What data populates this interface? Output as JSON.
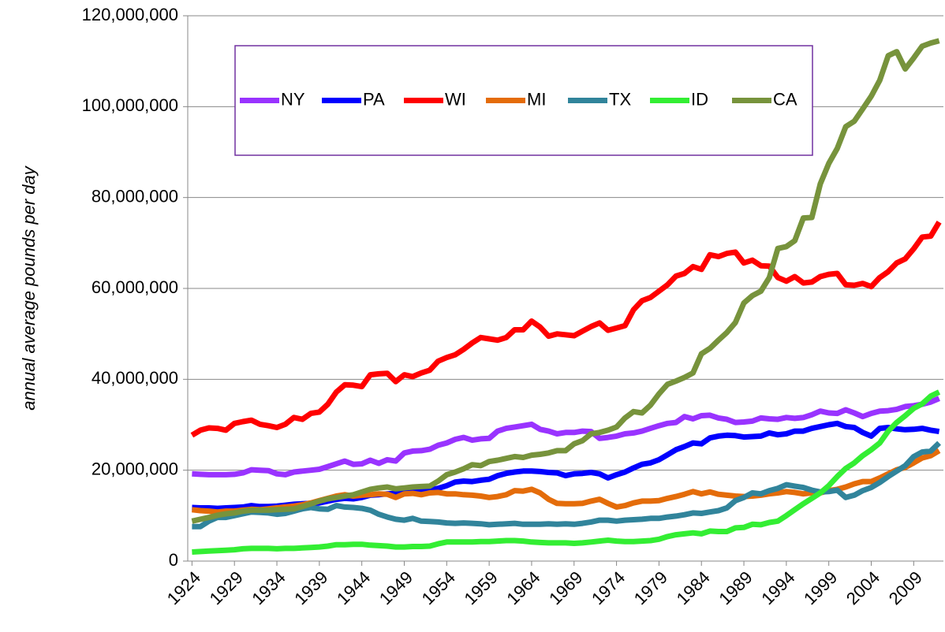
{
  "chart_data": {
    "type": "line",
    "y_label": "annual average pounds per day",
    "x": [
      1924,
      1925,
      1926,
      1927,
      1928,
      1929,
      1930,
      1931,
      1932,
      1933,
      1934,
      1935,
      1936,
      1937,
      1938,
      1939,
      1940,
      1941,
      1942,
      1943,
      1944,
      1945,
      1946,
      1947,
      1948,
      1949,
      1950,
      1951,
      1952,
      1953,
      1954,
      1955,
      1956,
      1957,
      1958,
      1959,
      1960,
      1961,
      1962,
      1963,
      1964,
      1965,
      1966,
      1967,
      1968,
      1969,
      1970,
      1971,
      1972,
      1973,
      1974,
      1975,
      1976,
      1977,
      1978,
      1979,
      1980,
      1981,
      1982,
      1983,
      1984,
      1985,
      1986,
      1987,
      1988,
      1989,
      1990,
      1991,
      1992,
      1993,
      1994,
      1995,
      1996,
      1997,
      1998,
      1999,
      2000,
      2001,
      2002,
      2003,
      2004,
      2005,
      2006,
      2007,
      2008,
      2009,
      2010,
      2011,
      2012
    ],
    "xlim": [
      1923.5,
      2012.5
    ],
    "xticks": [
      1924,
      1929,
      1934,
      1939,
      1944,
      1949,
      1954,
      1959,
      1964,
      1969,
      1974,
      1979,
      1984,
      1989,
      1994,
      1999,
      2004,
      2009
    ],
    "ylim": [
      0,
      120000000
    ],
    "yticks": [
      0,
      {
        "value": 20000000,
        "label": "20,000,000"
      },
      {
        "value": 40000000,
        "label": "40,000,000"
      },
      {
        "value": 60000000,
        "label": "60,000,000"
      },
      {
        "value": 80000000,
        "label": "80,000,000"
      },
      {
        "value": 100000000,
        "label": "100,000,000"
      },
      {
        "value": 120000000,
        "label": "120,000,000"
      }
    ],
    "grid": true,
    "legend_position": "top",
    "series": [
      {
        "name": "NY",
        "color": "#9933ff",
        "values": [
          19200000.0,
          19100000.0,
          19000000.0,
          19000000.0,
          19000000.0,
          19100000.0,
          19400000.0,
          20100000.0,
          20000000.0,
          19900000.0,
          19200000.0,
          19000000.0,
          19600000.0,
          19800000.0,
          20000000.0,
          20200000.0,
          20800000.0,
          21400000.0,
          22000000.0,
          21300000.0,
          21400000.0,
          22200000.0,
          21500000.0,
          22300000.0,
          22000000.0,
          23800000.0,
          24200000.0,
          24300000.0,
          24600000.0,
          25500000.0,
          26000000.0,
          26800000.0,
          27200000.0,
          26600000.0,
          26900000.0,
          27000000.0,
          28600000.0,
          29200000.0,
          29500000.0,
          29800000.0,
          30100000.0,
          29000000.0,
          28600000.0,
          28000000.0,
          28300000.0,
          28300000.0,
          28600000.0,
          28500000.0,
          27000000.0,
          27200000.0,
          27500000.0,
          28000000.0,
          28200000.0,
          28600000.0,
          29200000.0,
          29800000.0,
          30300000.0,
          30500000.0,
          31800000.0,
          31300000.0,
          32000000.0,
          32100000.0,
          31500000.0,
          31200000.0,
          30500000.0,
          30600000.0,
          30800000.0,
          31500000.0,
          31300000.0,
          31200000.0,
          31600000.0,
          31400000.0,
          31600000.0,
          32200000.0,
          33000000.0,
          32600000.0,
          32500000.0,
          33300000.0,
          32600000.0,
          31800000.0,
          32500000.0,
          33000000.0,
          33100000.0,
          33400000.0,
          34000000.0,
          34200000.0,
          34500000.0,
          35000000.0,
          35800000.0
        ]
      },
      {
        "name": "PA",
        "color": "#0000ff",
        "values": [
          11800000.0,
          11700000.0,
          11700000.0,
          11600000.0,
          11700000.0,
          11800000.0,
          11900000.0,
          12200000.0,
          12000000.0,
          12000000.0,
          12100000.0,
          12300000.0,
          12500000.0,
          12600000.0,
          12700000.0,
          12800000.0,
          13200000.0,
          13600000.0,
          13800000.0,
          13700000.0,
          14000000.0,
          14500000.0,
          14600000.0,
          14800000.0,
          14900000.0,
          15000000.0,
          15200000.0,
          15400000.0,
          15600000.0,
          16000000.0,
          16600000.0,
          17400000.0,
          17600000.0,
          17500000.0,
          17800000.0,
          18000000.0,
          18800000.0,
          19300000.0,
          19600000.0,
          19800000.0,
          19800000.0,
          19700000.0,
          19500000.0,
          19400000.0,
          18800000.0,
          19200000.0,
          19300000.0,
          19500000.0,
          19200000.0,
          18300000.0,
          19000000.0,
          19600000.0,
          20500000.0,
          21300000.0,
          21600000.0,
          22300000.0,
          23400000.0,
          24500000.0,
          25200000.0,
          26000000.0,
          25800000.0,
          27100000.0,
          27500000.0,
          27700000.0,
          27600000.0,
          27300000.0,
          27400000.0,
          27500000.0,
          28200000.0,
          27800000.0,
          28000000.0,
          28600000.0,
          28600000.0,
          29200000.0,
          29600000.0,
          30000000.0,
          30300000.0,
          29600000.0,
          29400000.0,
          28300000.0,
          27500000.0,
          29200000.0,
          29400000.0,
          29100000.0,
          28900000.0,
          29000000.0,
          29200000.0,
          28800000.0,
          28500000.0
        ]
      },
      {
        "name": "WI",
        "color": "#ff0000",
        "values": [
          27700000.0,
          28800000.0,
          29300000.0,
          29200000.0,
          28800000.0,
          30300000.0,
          30700000.0,
          31000000.0,
          30100000.0,
          29800000.0,
          29400000.0,
          30100000.0,
          31600000.0,
          31200000.0,
          32500000.0,
          32800000.0,
          34500000.0,
          37200000.0,
          38800000.0,
          38700000.0,
          38400000.0,
          41000000.0,
          41200000.0,
          41300000.0,
          39500000.0,
          41000000.0,
          40600000.0,
          41400000.0,
          42000000.0,
          44000000.0,
          44800000.0,
          45400000.0,
          46600000.0,
          48000000.0,
          49200000.0,
          48900000.0,
          48600000.0,
          49200000.0,
          50900000.0,
          50900000.0,
          52800000.0,
          51500000.0,
          49500000.0,
          50000000.0,
          49800000.0,
          49600000.0,
          50600000.0,
          51600000.0,
          52400000.0,
          50800000.0,
          51300000.0,
          51800000.0,
          55300000.0,
          57300000.0,
          58000000.0,
          59400000.0,
          60800000.0,
          62700000.0,
          63300000.0,
          64800000.0,
          64200000.0,
          67400000.0,
          67000000.0,
          67700000.0,
          68000000.0,
          65600000.0,
          66200000.0,
          65000000.0,
          64900000.0,
          62400000.0,
          61600000.0,
          62600000.0,
          61200000.0,
          61400000.0,
          62600000.0,
          63100000.0,
          63300000.0,
          60800000.0,
          60700000.0,
          61100000.0,
          60400000.0,
          62400000.0,
          63700000.0,
          65600000.0,
          66500000.0,
          68700000.0,
          71300000.0,
          71500000.0,
          74600000.0
        ]
      },
      {
        "name": "MI",
        "color": "#e46c0a",
        "values": [
          11300000.0,
          11100000.0,
          11000000.0,
          10800000.0,
          11000000.0,
          11000000.0,
          11200000.0,
          11400000.0,
          11300000.0,
          11500000.0,
          11700000.0,
          11900000.0,
          12100000.0,
          12400000.0,
          12800000.0,
          13300000.0,
          13800000.0,
          14300000.0,
          14600000.0,
          14300000.0,
          14500000.0,
          14600000.0,
          14800000.0,
          14700000.0,
          14000000.0,
          14800000.0,
          14900000.0,
          14600000.0,
          15000000.0,
          15100000.0,
          14800000.0,
          14800000.0,
          14600000.0,
          14500000.0,
          14300000.0,
          14000000.0,
          14200000.0,
          14600000.0,
          15500000.0,
          15400000.0,
          15800000.0,
          15000000.0,
          13600000.0,
          12700000.0,
          12600000.0,
          12600000.0,
          12700000.0,
          13200000.0,
          13600000.0,
          12700000.0,
          11900000.0,
          12200000.0,
          12800000.0,
          13200000.0,
          13200000.0,
          13300000.0,
          13800000.0,
          14200000.0,
          14700000.0,
          15300000.0,
          14800000.0,
          15200000.0,
          14700000.0,
          14500000.0,
          14300000.0,
          14200000.0,
          14300000.0,
          14500000.0,
          14800000.0,
          15000000.0,
          15300000.0,
          15100000.0,
          14800000.0,
          15000000.0,
          15000000.0,
          15500000.0,
          15800000.0,
          16300000.0,
          17000000.0,
          17500000.0,
          17500000.0,
          18300000.0,
          19200000.0,
          20100000.0,
          20600000.0,
          21600000.0,
          22700000.0,
          23200000.0,
          24300000.0
        ]
      },
      {
        "name": "TX",
        "color": "#31849b",
        "values": [
          7600000.0,
          7600000.0,
          8800000.0,
          9600000.0,
          9600000.0,
          10000000.0,
          10400000.0,
          10800000.0,
          10700000.0,
          10600000.0,
          10300000.0,
          10500000.0,
          11000000.0,
          11500000.0,
          11800000.0,
          11500000.0,
          11400000.0,
          12200000.0,
          11900000.0,
          11800000.0,
          11600000.0,
          11200000.0,
          10300000.0,
          9700000.0,
          9200000.0,
          9000000.0,
          9400000.0,
          8800000.0,
          8700000.0,
          8600000.0,
          8400000.0,
          8300000.0,
          8400000.0,
          8300000.0,
          8200000.0,
          8000000.0,
          8100000.0,
          8200000.0,
          8300000.0,
          8100000.0,
          8100000.0,
          8100000.0,
          8200000.0,
          8100000.0,
          8200000.0,
          8100000.0,
          8300000.0,
          8600000.0,
          9000000.0,
          9000000.0,
          8800000.0,
          9000000.0,
          9100000.0,
          9200000.0,
          9400000.0,
          9400000.0,
          9700000.0,
          9900000.0,
          10200000.0,
          10600000.0,
          10500000.0,
          10800000.0,
          11100000.0,
          11700000.0,
          13300000.0,
          14000000.0,
          15000000.0,
          14800000.0,
          15500000.0,
          16000000.0,
          16800000.0,
          16500000.0,
          16200000.0,
          15600000.0,
          15200000.0,
          15300000.0,
          15600000.0,
          14000000.0,
          14500000.0,
          15500000.0,
          16200000.0,
          17300000.0,
          18600000.0,
          19800000.0,
          21000000.0,
          23000000.0,
          24000000.0,
          24200000.0,
          26000000.0
        ]
      },
      {
        "name": "ID",
        "color": "#33ee33",
        "values": [
          2000000.0,
          2100000.0,
          2200000.0,
          2300000.0,
          2400000.0,
          2500000.0,
          2700000.0,
          2800000.0,
          2800000.0,
          2800000.0,
          2700000.0,
          2800000.0,
          2800000.0,
          2900000.0,
          3000000.0,
          3100000.0,
          3300000.0,
          3600000.0,
          3600000.0,
          3700000.0,
          3700000.0,
          3500000.0,
          3400000.0,
          3300000.0,
          3100000.0,
          3100000.0,
          3200000.0,
          3200000.0,
          3300000.0,
          3800000.0,
          4200000.0,
          4200000.0,
          4200000.0,
          4200000.0,
          4300000.0,
          4300000.0,
          4400000.0,
          4500000.0,
          4500000.0,
          4400000.0,
          4200000.0,
          4100000.0,
          4000000.0,
          4000000.0,
          4000000.0,
          3900000.0,
          4000000.0,
          4200000.0,
          4400000.0,
          4600000.0,
          4400000.0,
          4300000.0,
          4300000.0,
          4400000.0,
          4500000.0,
          4800000.0,
          5400000.0,
          5800000.0,
          6000000.0,
          6200000.0,
          6000000.0,
          6600000.0,
          6500000.0,
          6500000.0,
          7300000.0,
          7400000.0,
          8100000.0,
          8000000.0,
          8500000.0,
          8800000.0,
          10000000.0,
          11300000.0,
          12600000.0,
          13800000.0,
          15000000.0,
          16600000.0,
          18600000.0,
          20400000.0,
          21600000.0,
          23200000.0,
          24500000.0,
          26000000.0,
          28600000.0,
          30500000.0,
          32000000.0,
          33600000.0,
          34600000.0,
          36300000.0,
          37200000.0
        ]
      },
      {
        "name": "CA",
        "color": "#77933c",
        "values": [
          8800000.0,
          9200000.0,
          9600000.0,
          10100000.0,
          10400000.0,
          10600000.0,
          11000000.0,
          11200000.0,
          11200000.0,
          11200000.0,
          11300000.0,
          11400000.0,
          11500000.0,
          12000000.0,
          12600000.0,
          13200000.0,
          13700000.0,
          14000000.0,
          14300000.0,
          14600000.0,
          15200000.0,
          15800000.0,
          16100000.0,
          16300000.0,
          15900000.0,
          16100000.0,
          16300000.0,
          16400000.0,
          16500000.0,
          17600000.0,
          19000000.0,
          19600000.0,
          20300000.0,
          21200000.0,
          21000000.0,
          21900000.0,
          22200000.0,
          22600000.0,
          23000000.0,
          22800000.0,
          23300000.0,
          23500000.0,
          23800000.0,
          24300000.0,
          24300000.0,
          25800000.0,
          26500000.0,
          28000000.0,
          28300000.0,
          28800000.0,
          29500000.0,
          31500000.0,
          32900000.0,
          32600000.0,
          34300000.0,
          36800000.0,
          38900000.0,
          39600000.0,
          40400000.0,
          41400000.0,
          45600000.0,
          46800000.0,
          48600000.0,
          50300000.0,
          52500000.0,
          56800000.0,
          58400000.0,
          59400000.0,
          62400000.0,
          68800000.0,
          69200000.0,
          70500000.0,
          75500000.0,
          75600000.0,
          83000000.0,
          87500000.0,
          90800000.0,
          95600000.0,
          96800000.0,
          99500000.0,
          102300000.0,
          105800000.0,
          111200000.0,
          112100000.0,
          108300000.0,
          110700000.0,
          113300000.0,
          114000000.0,
          114500000.0
        ]
      }
    ]
  }
}
